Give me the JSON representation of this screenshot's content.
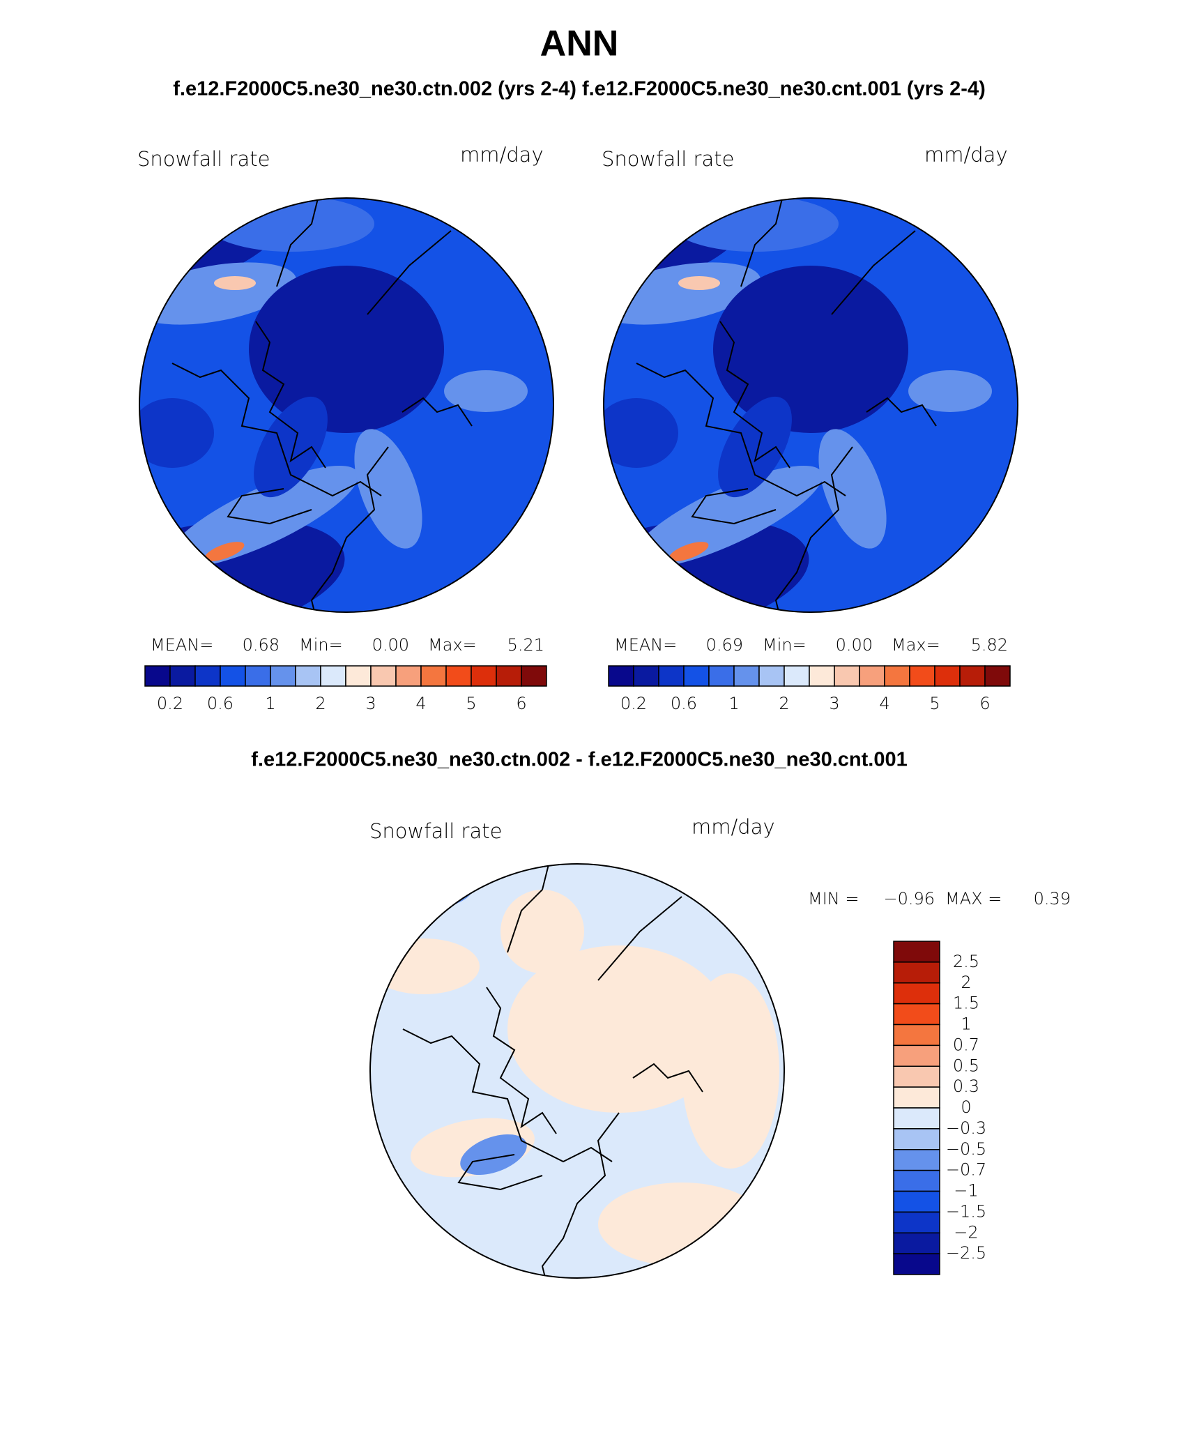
{
  "title": "ANN",
  "subtitle": "f.e12.F2000C5.ne30_ne30.ctn.002 (yrs 2-4) f.e12.F2000C5.ne30_ne30.cnt.001 (yrs 2-4)",
  "panels": [
    {
      "label": "Snowfall rate",
      "units": "mm/day",
      "stats": [
        "MEAN=",
        "0.68",
        "Min=",
        "0.00",
        "Max=",
        "5.21"
      ]
    },
    {
      "label": "Snowfall rate",
      "units": "mm/day",
      "stats": [
        "MEAN=",
        "0.69",
        "Min=",
        "0.00",
        "Max=",
        "5.82"
      ]
    }
  ],
  "colorbar": {
    "colors": [
      "#08088c",
      "#0a1aa0",
      "#0d35c8",
      "#1452e6",
      "#3a6ee8",
      "#6592ec",
      "#a8c4f4",
      "#dbe9fb",
      "#fde9d9",
      "#f9c8b0",
      "#f7a07c",
      "#f4763f",
      "#f24c1a",
      "#dd2f0b",
      "#b71d08",
      "#7f0a0a"
    ],
    "labels": [
      "0.2",
      "0.6",
      "1",
      "2",
      "3",
      "4",
      "5",
      "6"
    ]
  },
  "diff": {
    "title": "f.e12.F2000C5.ne30_ne30.ctn.002 - f.e12.F2000C5.ne30_ne30.cnt.001",
    "label": "Snowfall rate",
    "units": "mm/day",
    "stats": [
      "MIN =",
      "−0.96",
      "MAX =",
      "0.39"
    ],
    "colorbar": {
      "colors": [
        "#7f0a0a",
        "#b71d08",
        "#dd2f0b",
        "#f24c1a",
        "#f4763f",
        "#f7a07c",
        "#f9c8b0",
        "#fde9d9",
        "#dbe9fb",
        "#a8c4f4",
        "#6592ec",
        "#3a6ee8",
        "#1452e6",
        "#0d35c8",
        "#0a1aa0",
        "#08088c"
      ],
      "labels": [
        "2.5",
        "2",
        "1.5",
        "1",
        "0.7",
        "0.5",
        "0.3",
        "0",
        "−0.3",
        "−0.5",
        "−0.7",
        "−1",
        "−1.5",
        "−2",
        "−2.5"
      ]
    }
  }
}
